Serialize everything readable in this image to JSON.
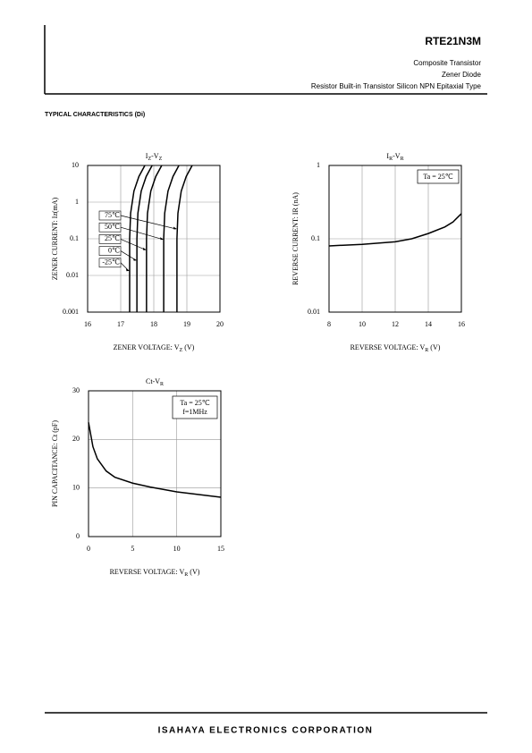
{
  "header": {
    "part": "RTE21N3M",
    "lines": [
      "Composite Transistor",
      "Zener Diode",
      "Resistor Built-in Transistor Silicon NPN Epitaxial Type"
    ]
  },
  "section_title": "TYPICAL CHARACTERISTICS (Di)",
  "footer": "ISAHAYA ELECTRONICS CORPORATION",
  "chart_data": [
    {
      "type": "line",
      "title": [
        "I",
        "Z",
        "-V",
        "Z"
      ],
      "x_label": [
        "ZENER VOLTAGE: V",
        "Z",
        " (V)"
      ],
      "y_label": "ZENER CURRENT: Iz(mA)",
      "xlim": [
        16,
        20
      ],
      "xticks": [
        16,
        17,
        18,
        19,
        20
      ],
      "ylim": [
        0.001,
        10
      ],
      "yticks": [
        0.001,
        0.01,
        0.1,
        1,
        10
      ],
      "ylog": true,
      "grid": true,
      "series": [
        {
          "name": "75℃",
          "color": "#000000",
          "x": [
            18.7,
            18.7,
            18.73,
            18.83,
            18.98,
            19.16
          ],
          "values": [
            0.001,
            0.1,
            0.5,
            2,
            5,
            10
          ]
        },
        {
          "name": "50℃",
          "color": "#000000",
          "x": [
            18.3,
            18.3,
            18.33,
            18.43,
            18.58,
            18.76
          ],
          "values": [
            0.001,
            0.1,
            0.5,
            2,
            5,
            10
          ]
        },
        {
          "name": "25℃",
          "color": "#000000",
          "x": [
            17.78,
            17.78,
            17.81,
            17.91,
            18.06,
            18.24
          ],
          "values": [
            0.001,
            0.1,
            0.5,
            2,
            5,
            10
          ]
        },
        {
          "name": "0℃",
          "color": "#000000",
          "x": [
            17.49,
            17.49,
            17.52,
            17.62,
            17.77,
            17.95
          ],
          "values": [
            0.001,
            0.1,
            0.5,
            2,
            5,
            10
          ]
        },
        {
          "name": "-25℃",
          "color": "#000000",
          "x": [
            17.27,
            17.27,
            17.3,
            17.4,
            17.55,
            17.73
          ],
          "values": [
            0.001,
            0.1,
            0.5,
            2,
            5,
            10
          ]
        }
      ]
    },
    {
      "type": "line",
      "title": [
        "I",
        "R",
        "-V",
        "R"
      ],
      "x_label": [
        "REVERSE VOLTAGE: V",
        "R",
        " (V)"
      ],
      "y_label": "REVERSE CURRENT: IR (nA)",
      "xlim": [
        8,
        16
      ],
      "xticks": [
        8,
        10,
        12,
        14,
        16
      ],
      "ylim": [
        0.01,
        1
      ],
      "yticks": [
        0.01,
        0.1,
        1
      ],
      "ylog": true,
      "grid": true,
      "annotation": [
        "Ta = 25℃"
      ],
      "series": [
        {
          "color": "#000000",
          "x": [
            8,
            10,
            12,
            13,
            14,
            15,
            15.5,
            16
          ],
          "values": [
            0.08,
            0.084,
            0.091,
            0.1,
            0.118,
            0.145,
            0.17,
            0.22
          ]
        }
      ]
    },
    {
      "type": "line",
      "title": [
        "Ct-V",
        "R"
      ],
      "x_label": [
        "REVERSE VOLTAGE: V",
        "R",
        " (V)"
      ],
      "y_label": "PIN CAPACITANCE: Ct (pF)",
      "xlim": [
        0,
        15
      ],
      "xticks": [
        0,
        5,
        10,
        15
      ],
      "ylim": [
        0,
        30
      ],
      "yticks": [
        0,
        10,
        20,
        30
      ],
      "grid": true,
      "annotation": [
        "Ta = 25℃",
        "f=1MHz"
      ],
      "series": [
        {
          "color": "#000000",
          "x": [
            0,
            0.5,
            1,
            2,
            3,
            5,
            7,
            10,
            15
          ],
          "values": [
            23.5,
            18.5,
            16,
            13.5,
            12.2,
            11,
            10.2,
            9.2,
            8.1
          ]
        }
      ]
    }
  ]
}
